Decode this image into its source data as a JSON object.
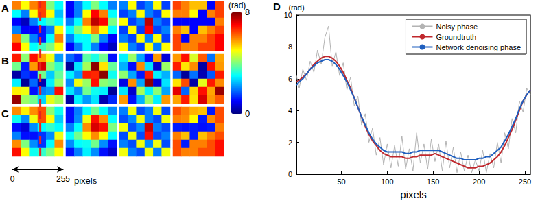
{
  "chart_data": [
    {
      "type": "heatmap",
      "rows": [
        {
          "label": "A",
          "images": [
            [
              [
                6,
                5,
                6,
                6.5,
                4,
                3
              ],
              [
                3,
                2,
                5,
                6.5,
                5,
                2.5
              ],
              [
                1,
                0.5,
                2,
                3,
                3.5,
                3
              ],
              [
                2,
                1,
                1,
                1.2,
                2,
                5
              ],
              [
                6,
                4,
                2,
                1.2,
                3,
                6
              ],
              [
                7,
                5,
                3,
                3.5,
                4,
                5
              ]
            ],
            [
              [
                1,
                2,
                3,
                4,
                3,
                2
              ],
              [
                1,
                2,
                5,
                7,
                6,
                3
              ],
              [
                2,
                3,
                6,
                7.5,
                7,
                4
              ],
              [
                3,
                4,
                5,
                6,
                5,
                3
              ],
              [
                2,
                3,
                3,
                4,
                2,
                1
              ],
              [
                1,
                2,
                3,
                2,
                1,
                0.5
              ]
            ],
            [
              [
                2,
                5,
                1.5,
                2,
                5,
                1.5
              ],
              [
                1.5,
                2,
                5,
                2,
                1.5,
                5
              ],
              [
                5,
                1.5,
                2,
                7.5,
                2,
                1.5
              ],
              [
                1.5,
                5,
                1.5,
                7,
                1.5,
                2
              ],
              [
                2,
                1.5,
                5,
                2,
                5,
                1.5
              ],
              [
                5,
                2,
                1.5,
                5,
                2,
                5
              ]
            ],
            [
              [
                6.5,
                6,
                5.5,
                5.5,
                1,
                6.5
              ],
              [
                6,
                6,
                5,
                1,
                6,
                6.5
              ],
              [
                1,
                1,
                1,
                1,
                1,
                6
              ],
              [
                6,
                5.5,
                1,
                5.5,
                6,
                6.5
              ],
              [
                6.5,
                1,
                6,
                6,
                6.5,
                7
              ],
              [
                6.5,
                6,
                6,
                6.5,
                6.5,
                7
              ]
            ]
          ]
        },
        {
          "label": "B",
          "images": [
            [
              [
                6.8,
                4.1,
                6.9,
                5.7,
                4.9,
                2.2
              ],
              [
                3.9,
                1.2,
                5.8,
                7.3,
                4.1,
                3.4
              ],
              [
                0.3,
                1.4,
                1.1,
                3.9,
                2.6,
                3.8
              ],
              [
                2.9,
                0.2,
                1.8,
                0.4,
                2.9,
                4.2
              ],
              [
                5.1,
                4.9,
                1.1,
                2.0,
                2.2,
                6.9
              ],
              [
                7.8,
                4.2,
                3.9,
                2.7,
                4.8,
                4.3
              ]
            ],
            [
              [
                1.8,
                1.3,
                3.7,
                3.2,
                3.9,
                1.1
              ],
              [
                0.2,
                2.8,
                4.3,
                7.9,
                5.2,
                3.8
              ],
              [
                2.9,
                2.2,
                6.8,
                6.7,
                7.9,
                3.1
              ],
              [
                2.1,
                4.9,
                4.2,
                6.9,
                4.1,
                3.9
              ],
              [
                2.8,
                2.1,
                3.9,
                3.1,
                2.9,
                0.2
              ],
              [
                0.3,
                2.9,
                2.2,
                2.8,
                0.4,
                1.3
              ]
            ],
            [
              [
                2.9,
                4.2,
                2.3,
                1.1,
                5.8,
                0.7
              ],
              [
                2.4,
                1.1,
                5.9,
                2.8,
                0.6,
                4.2
              ],
              [
                4.1,
                2.3,
                1.2,
                6.8,
                2.9,
                2.4
              ],
              [
                0.8,
                5.9,
                2.3,
                7.9,
                0.7,
                2.8
              ],
              [
                2.8,
                0.6,
                4.3,
                2.9,
                4.1,
                2.3
              ],
              [
                5.8,
                1.1,
                2.4,
                4.2,
                2.9,
                5.8
              ]
            ],
            [
              [
                5.8,
                6.9,
                4.7,
                6.3,
                1.9,
                5.7
              ],
              [
                6.8,
                5.2,
                5.9,
                0.3,
                6.9,
                5.8
              ],
              [
                1.8,
                0.2,
                1.9,
                0.4,
                1.7,
                6.8
              ],
              [
                5.2,
                6.4,
                0.3,
                4.8,
                6.8,
                5.9
              ],
              [
                7.2,
                1.8,
                5.3,
                6.9,
                5.7,
                7.8
              ],
              [
                5.7,
                6.8,
                5.2,
                7.3,
                5.8,
                6.3
              ]
            ]
          ]
        },
        {
          "label": "C",
          "images": [
            [
              [
                5.9,
                5.1,
                5.9,
                6.4,
                4.1,
                3.1
              ],
              [
                3.1,
                2.1,
                4.9,
                6.4,
                5.0,
                2.6
              ],
              [
                1.1,
                0.7,
                2.1,
                3.0,
                3.4,
                3.0
              ],
              [
                2.0,
                1.1,
                1.1,
                1.4,
                2.1,
                4.9
              ],
              [
                5.9,
                4.0,
                2.1,
                1.4,
                3.0,
                5.9
              ],
              [
                6.9,
                5.0,
                3.1,
                3.4,
                4.0,
                5.0
              ]
            ],
            [
              [
                1.1,
                2.0,
                3.0,
                3.9,
                3.0,
                2.1
              ],
              [
                1.1,
                2.1,
                4.9,
                6.9,
                5.9,
                3.0
              ],
              [
                2.0,
                3.0,
                5.9,
                7.3,
                6.9,
                4.0
              ],
              [
                3.0,
                3.9,
                5.0,
                5.9,
                5.0,
                3.0
              ],
              [
                2.1,
                3.0,
                3.1,
                3.9,
                2.1,
                1.1
              ],
              [
                1.1,
                2.0,
                2.9,
                2.1,
                1.1,
                0.6
              ]
            ],
            [
              [
                2.0,
                4.9,
                1.6,
                2.0,
                4.9,
                1.6
              ],
              [
                1.6,
                2.1,
                4.9,
                2.0,
                1.6,
                4.9
              ],
              [
                4.9,
                1.6,
                2.1,
                7.4,
                2.0,
                1.6
              ],
              [
                1.6,
                4.9,
                1.6,
                6.9,
                1.6,
                2.0
              ],
              [
                2.0,
                1.6,
                4.9,
                2.1,
                4.9,
                1.6
              ],
              [
                4.9,
                2.0,
                1.6,
                4.9,
                2.0,
                4.9
              ]
            ],
            [
              [
                6.4,
                6.0,
                5.6,
                5.5,
                1.2,
                6.4
              ],
              [
                6.0,
                5.9,
                5.0,
                1.2,
                5.9,
                6.4
              ],
              [
                1.2,
                1.1,
                1.2,
                1.1,
                1.2,
                6.0
              ],
              [
                6.0,
                5.5,
                1.2,
                5.5,
                6.0,
                6.4
              ],
              [
                6.4,
                1.2,
                6.0,
                6.0,
                6.4,
                6.9
              ],
              [
                6.4,
                6.0,
                6.0,
                6.4,
                6.4,
                6.9
              ]
            ]
          ]
        }
      ],
      "colorbar": {
        "range": [
          0,
          8
        ],
        "ticks": [
          0,
          8
        ],
        "label": "(rad)",
        "colors": [
          "#00007f",
          "#0000ff",
          "#007fff",
          "#00ffff",
          "#7fff7f",
          "#ffff00",
          "#ff7f00",
          "#ff0000",
          "#7f0000"
        ]
      },
      "profile_line": {
        "x": 140,
        "color": "#e8231f",
        "line_style": "dashed"
      },
      "scale_bar": {
        "xlim": [
          0,
          255
        ],
        "xticks": [
          0,
          255
        ],
        "label": "pixels"
      }
    },
    {
      "type": "line",
      "label": "D",
      "x": [
        1,
        4,
        8,
        12,
        16,
        20,
        24,
        28,
        32,
        36,
        40,
        44,
        48,
        52,
        56,
        60,
        64,
        68,
        72,
        76,
        80,
        84,
        88,
        92,
        96,
        100,
        104,
        108,
        112,
        116,
        120,
        124,
        128,
        132,
        136,
        140,
        144,
        148,
        152,
        156,
        160,
        164,
        168,
        172,
        176,
        180,
        184,
        188,
        192,
        196,
        200,
        204,
        208,
        212,
        216,
        220,
        224,
        228,
        232,
        236,
        240,
        244,
        248,
        252,
        256
      ],
      "series": [
        {
          "name": "Noisy phase",
          "color": "#b3b3b3",
          "line_style": "solid",
          "marker": "none",
          "values": [
            6.2,
            5.4,
            6.6,
            5.9,
            7.1,
            6.4,
            7.8,
            6.9,
            8.6,
            9.3,
            6.8,
            7.7,
            6.2,
            7.0,
            5.3,
            6.1,
            4.3,
            4.9,
            3.1,
            3.8,
            2.0,
            2.9,
            1.2,
            2.3,
            0.6,
            1.9,
            0.4,
            1.8,
            0.5,
            2.4,
            0.3,
            1.6,
            0.2,
            2.6,
            0.7,
            1.9,
            0.3,
            2.2,
            0.8,
            1.9,
            0.2,
            2.1,
            0.4,
            1.7,
            0.1,
            1.4,
            0.2,
            1.2,
            0.1,
            0.9,
            0.2,
            1.5,
            0.1,
            1.3,
            0.4,
            2.0,
            0.7,
            2.6,
            1.6,
            3.5,
            2.6,
            4.6,
            3.9,
            5.4,
            5.0
          ]
        },
        {
          "name": "Groundtruth",
          "color": "#c0282d",
          "line_style": "solid",
          "marker": "none",
          "values": [
            5.8,
            5.9,
            6.1,
            6.3,
            6.6,
            6.9,
            7.1,
            7.3,
            7.4,
            7.4,
            7.3,
            7.1,
            6.8,
            6.4,
            5.9,
            5.4,
            4.8,
            4.2,
            3.6,
            3.0,
            2.5,
            2.1,
            1.8,
            1.5,
            1.3,
            1.2,
            1.1,
            1.1,
            1.1,
            1.1,
            1.0,
            1.0,
            1.1,
            1.1,
            1.2,
            1.2,
            1.2,
            1.2,
            1.3,
            1.2,
            1.1,
            1.0,
            0.9,
            0.8,
            0.7,
            0.6,
            0.5,
            0.4,
            0.4,
            0.4,
            0.5,
            0.5,
            0.6,
            0.7,
            0.9,
            1.1,
            1.4,
            1.8,
            2.3,
            2.8,
            3.4,
            4.0,
            4.6,
            5.0,
            5.3
          ]
        },
        {
          "name": "Network denoising phase",
          "color": "#1f5fbf",
          "line_style": "solid",
          "marker": "none",
          "values": [
            5.6,
            5.8,
            6.0,
            6.3,
            6.6,
            6.8,
            7.0,
            7.1,
            7.2,
            7.2,
            7.1,
            6.9,
            6.6,
            6.2,
            5.8,
            5.3,
            4.8,
            4.2,
            3.6,
            3.1,
            2.6,
            2.2,
            1.9,
            1.7,
            1.5,
            1.4,
            1.4,
            1.4,
            1.4,
            1.4,
            1.3,
            1.3,
            1.4,
            1.4,
            1.5,
            1.5,
            1.5,
            1.5,
            1.5,
            1.5,
            1.4,
            1.3,
            1.2,
            1.1,
            1.0,
            1.0,
            0.9,
            0.9,
            0.9,
            0.9,
            1.0,
            1.0,
            1.1,
            1.1,
            1.3,
            1.5,
            1.7,
            2.1,
            2.5,
            3.0,
            3.5,
            4.1,
            4.6,
            5.0,
            5.3
          ]
        }
      ],
      "xlim": [
        1,
        256
      ],
      "xticks": [
        50,
        100,
        150,
        200,
        250
      ],
      "ylim": [
        0,
        10
      ],
      "yticks": [
        0,
        2,
        4,
        6,
        8,
        10
      ],
      "xlabel": "pixels",
      "ylabel": "(rad)",
      "legend": "upper right",
      "grid": false
    }
  ]
}
